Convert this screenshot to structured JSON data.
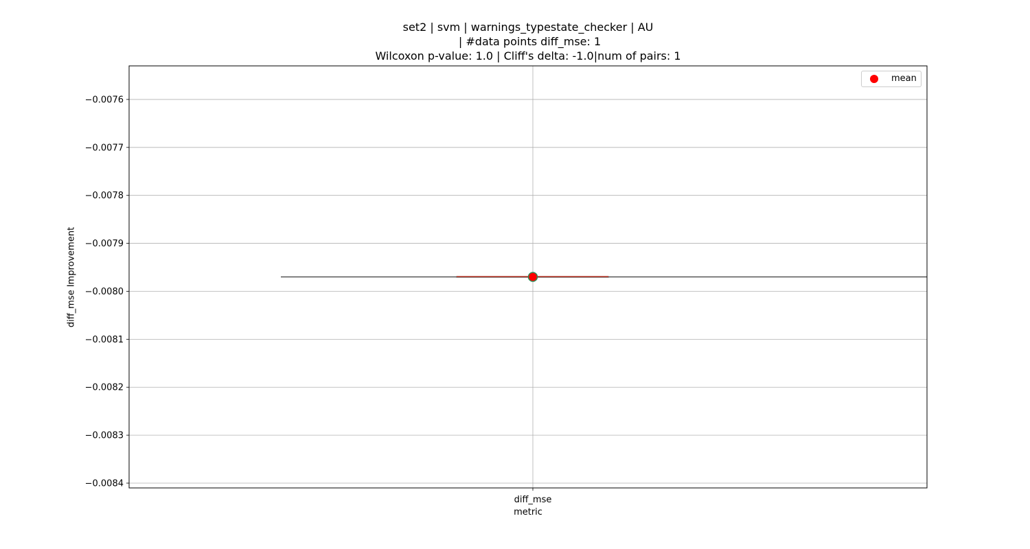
{
  "title_lines": [
    "set2 | svm | warnings_typestate_checker | AU",
    " | #data points diff_mse: 1",
    "Wilcoxon p-value: 1.0 | Cliff's delta: -1.0|num of pairs: 1"
  ],
  "legend": {
    "label": "mean",
    "color": "#ff0000"
  },
  "colors": {
    "grid": "#b0b0b0",
    "box_line": "#555555",
    "median": "#c0392b",
    "mean_fill": "#ff0000",
    "mean_edge": "#2e8b57"
  },
  "chart_data": {
    "type": "box",
    "title": "set2 | svm | warnings_typestate_checker | AU\n | #data points diff_mse: 1\nWilcoxon p-value: 1.0 | Cliff's delta: -1.0|num of pairs: 1",
    "xlabel": "metric",
    "ylabel": "diff_mse Improvement",
    "categories": [
      "diff_mse"
    ],
    "values": [
      -0.00797
    ],
    "mean": [
      -0.00797
    ],
    "median": [
      -0.00797
    ],
    "ylim": [
      -0.00841,
      -0.00753
    ],
    "yticks": [
      -0.0076,
      -0.0077,
      -0.0078,
      -0.0079,
      -0.008,
      -0.0081,
      -0.0082,
      -0.0083,
      -0.0084
    ],
    "ytick_labels": [
      "−0.0076",
      "−0.0077",
      "−0.0078",
      "−0.0079",
      "−0.0080",
      "−0.0081",
      "−0.0082",
      "−0.0083",
      "−0.0084"
    ],
    "grid": true,
    "legend_position": "top-right"
  }
}
